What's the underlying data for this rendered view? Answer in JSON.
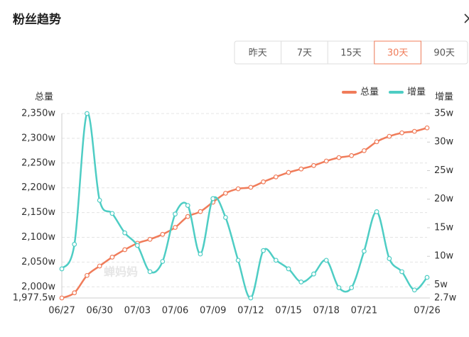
{
  "header": {
    "title": "粉丝趋势"
  },
  "tabs": [
    "昨天",
    "7天",
    "15天",
    "30天",
    "90天"
  ],
  "active_tab": 3,
  "chart_data": {
    "type": "line",
    "y_label": "总量",
    "y2_label": "增量",
    "watermark": "蝉妈妈",
    "categories": [
      "06/27",
      null,
      null,
      "06/30",
      null,
      null,
      "07/03",
      null,
      null,
      "07/06",
      null,
      null,
      "07/09",
      null,
      null,
      "07/12",
      null,
      null,
      "07/15",
      null,
      null,
      "07/18",
      null,
      null,
      "07/21",
      null,
      null,
      null,
      null,
      "07/26"
    ],
    "series": [
      {
        "name": "总量",
        "color": "#f07c5a",
        "values": [
          1977.5,
          1988,
          2023,
          2042,
          2060,
          2075,
          2088,
          2096,
          2106,
          2120,
          2142,
          2152,
          2171,
          2189,
          2198,
          2201,
          2212,
          2222,
          2231,
          2238,
          2245,
          2254,
          2261,
          2265,
          2275,
          2293,
          2304,
          2311,
          2314,
          2321
        ]
      },
      {
        "name": "增量",
        "color": "#4ecdc4",
        "axis": "y2",
        "values": [
          7.8,
          12.1,
          35,
          19.8,
          17.5,
          14.1,
          11.9,
          7.3,
          9.1,
          17.4,
          18.9,
          10.4,
          20.1,
          16.8,
          9.3,
          2.7,
          11.0,
          9.3,
          7.8,
          5.5,
          6.9,
          9.3,
          4.5,
          4.5,
          10.9,
          17.8,
          9.6,
          7.3,
          4.1,
          6.3
        ]
      }
    ],
    "ylim": [
      1977.5,
      2350
    ],
    "yticks": [
      {
        "value": 1977.5,
        "label": "1,977.5w"
      },
      {
        "value": 2000,
        "label": "2,000w"
      },
      {
        "value": 2050,
        "label": "2,050w"
      },
      {
        "value": 2100,
        "label": "2,100w"
      },
      {
        "value": 2150,
        "label": "2,150w"
      },
      {
        "value": 2200,
        "label": "2,200w"
      },
      {
        "value": 2250,
        "label": "2,250w"
      },
      {
        "value": 2300,
        "label": "2,300w"
      },
      {
        "value": 2350,
        "label": "2,350w"
      }
    ],
    "y2lim": [
      2.7,
      35
    ],
    "y2ticks": [
      {
        "value": 2.7,
        "label": "2.7w"
      },
      {
        "value": 5,
        "label": "5w"
      },
      {
        "value": 10,
        "label": "10w"
      },
      {
        "value": 15,
        "label": "15w"
      },
      {
        "value": 20,
        "label": "20w"
      },
      {
        "value": 25,
        "label": "25w"
      },
      {
        "value": 30,
        "label": "30w"
      },
      {
        "value": 35,
        "label": "35w"
      }
    ],
    "grid": true,
    "legend": "top-right"
  }
}
